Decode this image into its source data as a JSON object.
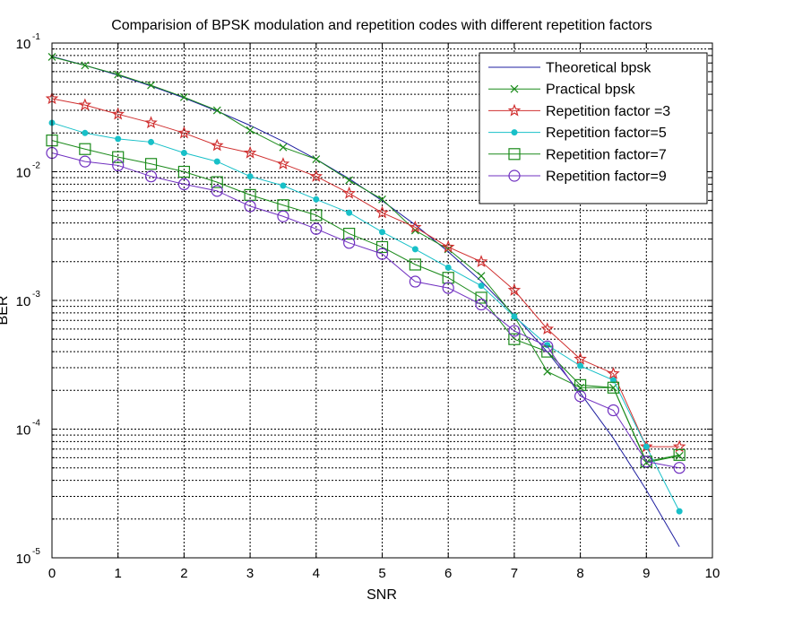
{
  "chart_data": {
    "type": "line",
    "title": "Comparision of BPSK modulation and repetition codes with different repetition factors",
    "xlabel": "SNR",
    "ylabel": "BER",
    "xlim": [
      0,
      10
    ],
    "ylim": [
      1e-05,
      0.1
    ],
    "yscale": "log",
    "grid": true,
    "legend_position": "top-right",
    "x_ticks": [
      "0",
      "1",
      "2",
      "3",
      "4",
      "5",
      "6",
      "7",
      "8",
      "9",
      "10"
    ],
    "y_ticks": [
      {
        "base": "10",
        "exp": "-1",
        "value": 0.1
      },
      {
        "base": "10",
        "exp": "-2",
        "value": 0.01
      },
      {
        "base": "10",
        "exp": "-3",
        "value": 0.001
      },
      {
        "base": "10",
        "exp": "-4",
        "value": 0.0001
      },
      {
        "base": "10",
        "exp": "-5",
        "value": 1e-05
      }
    ],
    "x": [
      0,
      0.5,
      1,
      1.5,
      2,
      2.5,
      3,
      3.5,
      4,
      4.5,
      5,
      5.5,
      6,
      6.5,
      7,
      7.5,
      8,
      8.5,
      9,
      9.5
    ],
    "series": [
      {
        "name": "Theoretical bpsk",
        "color": "#1f1fa0",
        "marker": "none",
        "values": [
          0.0786,
          0.0671,
          0.0563,
          0.0464,
          0.0375,
          0.0296,
          0.0229,
          0.0172,
          0.0125,
          0.00882,
          0.00595,
          0.00387,
          0.00239,
          0.00141,
          0.00077,
          0.000398,
          0.000191,
          8.49e-05,
          3.36e-05,
          1.22e-05
        ]
      },
      {
        "name": "Practical bpsk",
        "color": "#1a8a1a",
        "marker": "x",
        "values": [
          0.078,
          0.067,
          0.057,
          0.047,
          0.038,
          0.03,
          0.021,
          0.0155,
          0.0125,
          0.0086,
          0.0061,
          0.0035,
          0.0025,
          0.00155,
          0.00075,
          0.00028,
          0.00021,
          0.00021,
          5.5e-05,
          6.2e-05
        ]
      },
      {
        "name": "Repetition factor =3",
        "color": "#d03030",
        "marker": "star",
        "values": [
          0.037,
          0.033,
          0.028,
          0.024,
          0.02,
          0.016,
          0.014,
          0.0115,
          0.0092,
          0.0068,
          0.0048,
          0.0037,
          0.0026,
          0.002,
          0.0012,
          0.0006,
          0.00035,
          0.00027,
          7.3e-05,
          7.3e-05
        ]
      },
      {
        "name": "Repetition factor=5",
        "color": "#18c0c8",
        "marker": "dot",
        "values": [
          0.024,
          0.02,
          0.018,
          0.017,
          0.014,
          0.012,
          0.0092,
          0.0078,
          0.0061,
          0.0048,
          0.0034,
          0.0025,
          0.0018,
          0.0013,
          0.00075,
          0.00045,
          0.00031,
          0.00024,
          7.3e-05,
          2.3e-05
        ]
      },
      {
        "name": "Repetition factor=7",
        "color": "#1a8a1a",
        "marker": "square",
        "values": [
          0.0175,
          0.015,
          0.013,
          0.0115,
          0.01,
          0.0083,
          0.0066,
          0.0055,
          0.0046,
          0.0033,
          0.0026,
          0.0019,
          0.0015,
          0.00105,
          0.0005,
          0.0004,
          0.00022,
          0.00021,
          5.6e-05,
          6.3e-05
        ]
      },
      {
        "name": "Repetition factor=9",
        "color": "#7030c0",
        "marker": "circle",
        "values": [
          0.014,
          0.012,
          0.0112,
          0.0092,
          0.008,
          0.0071,
          0.0054,
          0.0045,
          0.0036,
          0.0028,
          0.0023,
          0.0014,
          0.00125,
          0.00093,
          0.00058,
          0.00044,
          0.00018,
          0.00014,
          5.6e-05,
          5e-05
        ]
      }
    ]
  }
}
